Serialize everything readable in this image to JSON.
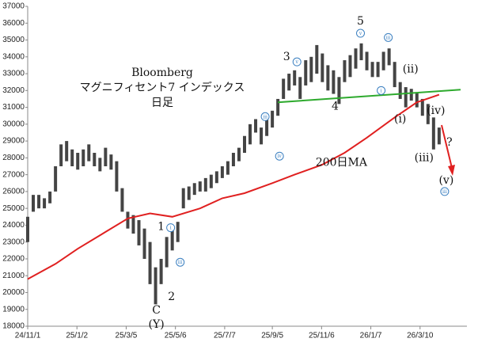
{
  "chart_data": {
    "type": "range",
    "title": [
      "Bloomberg",
      "マグニフィセント7 インデックス",
      "日足"
    ],
    "color": "#444444",
    "x": [
      "24/11/1",
      "24/11/8",
      "24/11/15",
      "24/11/22",
      "24/11/29",
      "24/12/6",
      "24/12/13",
      "24/12/20",
      "24/12/27",
      "25/1/3",
      "25/1/10",
      "25/1/17",
      "25/1/24",
      "25/1/31",
      "25/2/7",
      "25/2/14",
      "25/2/21",
      "25/2/28",
      "25/3/7",
      "25/3/14",
      "25/3/21",
      "25/3/28",
      "25/4/4",
      "25/4/11",
      "25/4/18",
      "25/4/25",
      "25/5/2",
      "25/5/9",
      "25/5/16",
      "25/5/23",
      "25/5/30",
      "25/6/6",
      "25/6/13",
      "25/6/20",
      "25/6/27",
      "25/7/4",
      "25/7/11",
      "25/7/18",
      "25/7/25",
      "25/8/1",
      "25/8/8",
      "25/8/15",
      "25/8/22",
      "25/8/29",
      "25/9/5",
      "25/9/12",
      "25/9/19",
      "25/9/26",
      "25/10/3",
      "25/10/10",
      "25/10/17",
      "25/10/24",
      "25/10/31",
      "25/11/7",
      "25/11/14",
      "25/11/21",
      "25/11/28",
      "25/12/5",
      "25/12/12",
      "25/12/19",
      "25/12/26",
      "26/1/2",
      "26/1/9",
      "26/1/16",
      "26/1/23",
      "26/1/30",
      "26/2/6",
      "26/2/13",
      "26/2/20",
      "26/2/27",
      "26/3/6",
      "26/3/13",
      "26/3/20",
      "26/3/27",
      "26/4/3"
    ],
    "low": [
      23000,
      24800,
      25000,
      25000,
      25300,
      26000,
      27500,
      27800,
      27500,
      27300,
      27500,
      27800,
      27500,
      27200,
      27500,
      27300,
      26000,
      24800,
      23800,
      23500,
      22800,
      22000,
      20500,
      19300,
      20500,
      21500,
      22500,
      23000,
      25000,
      25500,
      25800,
      26000,
      26000,
      26200,
      26500,
      26800,
      27000,
      27500,
      27800,
      28300,
      28800,
      29500,
      28800,
      29300,
      29800,
      30500,
      31500,
      32000,
      32300,
      31500,
      32300,
      32500,
      33000,
      32500,
      32000,
      31800,
      31200,
      32500,
      32800,
      33300,
      33800,
      33200,
      32800,
      32800,
      33200,
      33500,
      32200,
      31500,
      31000,
      31400,
      31000,
      30500,
      30000,
      28500,
      28800
    ],
    "high": [
      24500,
      25800,
      25800,
      25600,
      26000,
      27500,
      28800,
      29000,
      28500,
      28300,
      28500,
      28800,
      28300,
      28000,
      28600,
      28200,
      27800,
      26200,
      24800,
      24600,
      24300,
      23800,
      23000,
      21500,
      22000,
      23300,
      24000,
      24200,
      26200,
      26300,
      26500,
      26600,
      26800,
      27000,
      27200,
      27500,
      27800,
      28300,
      28600,
      29300,
      30000,
      30300,
      29800,
      30300,
      30800,
      31500,
      32700,
      33000,
      33200,
      32800,
      33800,
      34000,
      34700,
      34200,
      33500,
      33200,
      32800,
      33800,
      34100,
      34500,
      34800,
      34300,
      33700,
      33700,
      34300,
      34500,
      33700,
      32500,
      32200,
      32100,
      31900,
      31500,
      31200,
      30400,
      29800
    ],
    "ma": {
      "color": "#e02020",
      "x": [
        "24/11/1",
        "24/12/6",
        "25/1/3",
        "25/2/7",
        "25/3/7",
        "25/4/4",
        "25/5/2",
        "25/6/6",
        "25/7/4",
        "25/8/1",
        "25/9/5",
        "25/10/3",
        "25/11/7",
        "25/12/5",
        "26/1/2",
        "26/2/6",
        "26/3/6",
        "26/4/3"
      ],
      "values": [
        20800,
        21700,
        22600,
        23600,
        24400,
        24700,
        24500,
        25000,
        25600,
        25900,
        26500,
        27000,
        27600,
        28300,
        29200,
        30400,
        31300,
        31750
      ]
    },
    "trendline": {
      "color": "#2eaa2e",
      "x": [
        "25/9/12",
        "26/4/30"
      ],
      "values": [
        31300,
        32050
      ]
    },
    "annotations": [
      {
        "text": "200日MA",
        "x": "25/12/1",
        "y": 27700,
        "color": "#e02020",
        "size": 8
      },
      {
        "text": "1",
        "x": "25/4/18",
        "y": 23900
      },
      {
        "text": "2",
        "x": "25/5/1",
        "y": 19750
      },
      {
        "text": "C",
        "x": "25/4/12",
        "y": 18950
      },
      {
        "text": "(Y)",
        "x": "25/4/12",
        "y": 18100
      },
      {
        "text": "3",
        "x": "25/9/23",
        "y": 34000
      },
      {
        "text": "4",
        "x": "25/11/23",
        "y": 31050
      },
      {
        "text": "5",
        "x": "25/12/25",
        "y": 36100
      },
      {
        "text": "(ii)",
        "x": "26/2/26",
        "y": 33250
      },
      {
        "text": "(i)",
        "x": "26/2/13",
        "y": 30300
      },
      {
        "text": "(iv)",
        "x": "26/3/30",
        "y": 30800
      },
      {
        "text": "(iii)",
        "x": "26/3/15",
        "y": 28000
      },
      {
        "text": "(v)",
        "x": "26/4/12",
        "y": 26650
      },
      {
        "text": "?",
        "x": "26/4/16",
        "y": 28900,
        "color": "#e02020"
      },
      {
        "text": "i",
        "x": "25/4/30",
        "y": 23850,
        "circled": true
      },
      {
        "text": "iii",
        "x": "25/5/12",
        "y": 21800,
        "circled": true
      },
      {
        "text": "iii",
        "x": "25/8/27",
        "y": 30450,
        "circled": true
      },
      {
        "text": "iv",
        "x": "25/9/14",
        "y": 28100,
        "circled": true
      },
      {
        "text": "v",
        "x": "25/10/6",
        "y": 33700,
        "circled": true
      },
      {
        "text": "v",
        "x": "25/12/25",
        "y": 35400,
        "circled": true
      },
      {
        "text": "iii",
        "x": "26/1/29",
        "y": 35150,
        "circled": true
      },
      {
        "text": "i",
        "x": "26/1/20",
        "y": 32000,
        "circled": true
      },
      {
        "text": "iii",
        "x": "26/4/10",
        "y": 26000,
        "circled": true
      }
    ],
    "xlim": [
      "24/11/1",
      "26/5/8"
    ],
    "xticks": [
      "24/11/1",
      "25/1/2",
      "25/3/5",
      "25/5/6",
      "25/7/7",
      "25/9/5",
      "25/11/6",
      "26/1/7",
      "26/3/10"
    ],
    "ylim": [
      18000,
      37000
    ],
    "yticks": [
      18000,
      19000,
      20000,
      21000,
      22000,
      23000,
      24000,
      25000,
      26000,
      27000,
      28000,
      29000,
      30000,
      31000,
      32000,
      33000,
      34000,
      35000,
      36000,
      37000
    ],
    "grid": false
  }
}
